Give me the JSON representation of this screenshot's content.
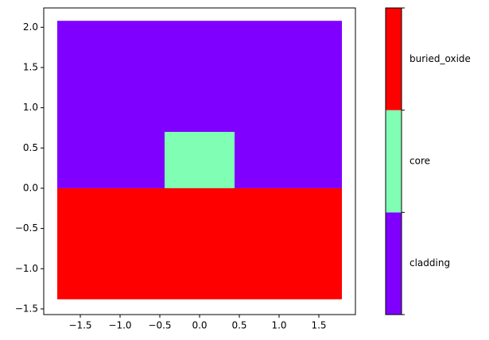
{
  "chart_data": {
    "type": "region",
    "series": [
      {
        "name": "cladding",
        "color": "#8000ff",
        "rects": [
          {
            "x": [
              -1.79,
              1.79
            ],
            "y": [
              0,
              2.08
            ]
          }
        ]
      },
      {
        "name": "core",
        "color": "#80ffb4",
        "rects": [
          {
            "x": [
              -0.44,
              0.44
            ],
            "y": [
              0,
              0.7
            ]
          }
        ]
      },
      {
        "name": "buried_oxide",
        "color": "#ff0000",
        "rects": [
          {
            "x": [
              -1.79,
              1.79
            ],
            "y": [
              -1.38,
              0
            ]
          }
        ]
      }
    ],
    "xlim": [
      -1.96,
      1.96
    ],
    "ylim": [
      -1.57,
      2.24
    ],
    "xticks": [
      {
        "value": -1.5,
        "label": "−1.5"
      },
      {
        "value": -1.0,
        "label": "−1.0"
      },
      {
        "value": -0.5,
        "label": "−0.5"
      },
      {
        "value": 0,
        "label": "0.0"
      },
      0.5,
      {
        "value": 1.0,
        "label": "1.0"
      },
      1.5
    ],
    "yticks": [
      {
        "value": -1.5,
        "label": "−1.5"
      },
      {
        "value": -1.0,
        "label": "−1.0"
      },
      {
        "value": -0.5,
        "label": "−0.5"
      },
      {
        "value": 0,
        "label": "0.0"
      },
      0.5,
      {
        "value": 1.0,
        "label": "1.0"
      },
      1.5,
      {
        "value": 2.0,
        "label": "2.0"
      }
    ],
    "grid": false,
    "colorbar": true
  }
}
